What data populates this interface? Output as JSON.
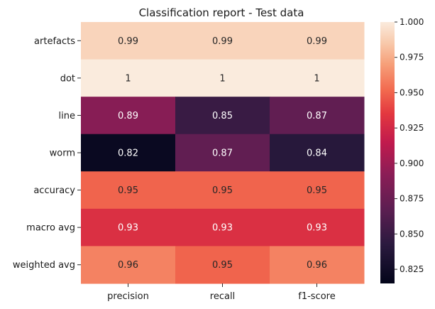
{
  "chart_data": {
    "type": "heatmap",
    "title": "Classification report - Test data",
    "xlabel": "",
    "ylabel": "",
    "x_categories": [
      "precision",
      "recall",
      "f1-score"
    ],
    "y_categories": [
      "artefacts",
      "dot",
      "line",
      "worm",
      "accuracy",
      "macro avg",
      "weighted avg"
    ],
    "values": [
      [
        0.99,
        0.99,
        0.99
      ],
      [
        1,
        1,
        1
      ],
      [
        0.89,
        0.85,
        0.87
      ],
      [
        0.82,
        0.87,
        0.84
      ],
      [
        0.95,
        0.95,
        0.95
      ],
      [
        0.93,
        0.93,
        0.93
      ],
      [
        0.96,
        0.95,
        0.96
      ]
    ],
    "cell_labels": [
      [
        "0.99",
        "0.99",
        "0.99"
      ],
      [
        "1",
        "1",
        "1"
      ],
      [
        "0.89",
        "0.85",
        "0.87"
      ],
      [
        "0.82",
        "0.87",
        "0.84"
      ],
      [
        "0.95",
        "0.95",
        "0.95"
      ],
      [
        "0.93",
        "0.93",
        "0.93"
      ],
      [
        "0.96",
        "0.95",
        "0.96"
      ]
    ],
    "color_range": [
      0.815,
      1.0
    ],
    "colormap": "rocket",
    "colorbar_ticks": [
      "1.000",
      "0.975",
      "0.950",
      "0.925",
      "0.900",
      "0.875",
      "0.850",
      "0.825"
    ],
    "colorbar_tick_values": [
      1.0,
      0.975,
      0.95,
      0.925,
      0.9,
      0.875,
      0.85,
      0.825
    ],
    "grid": false,
    "legend": "colorbar-right"
  }
}
